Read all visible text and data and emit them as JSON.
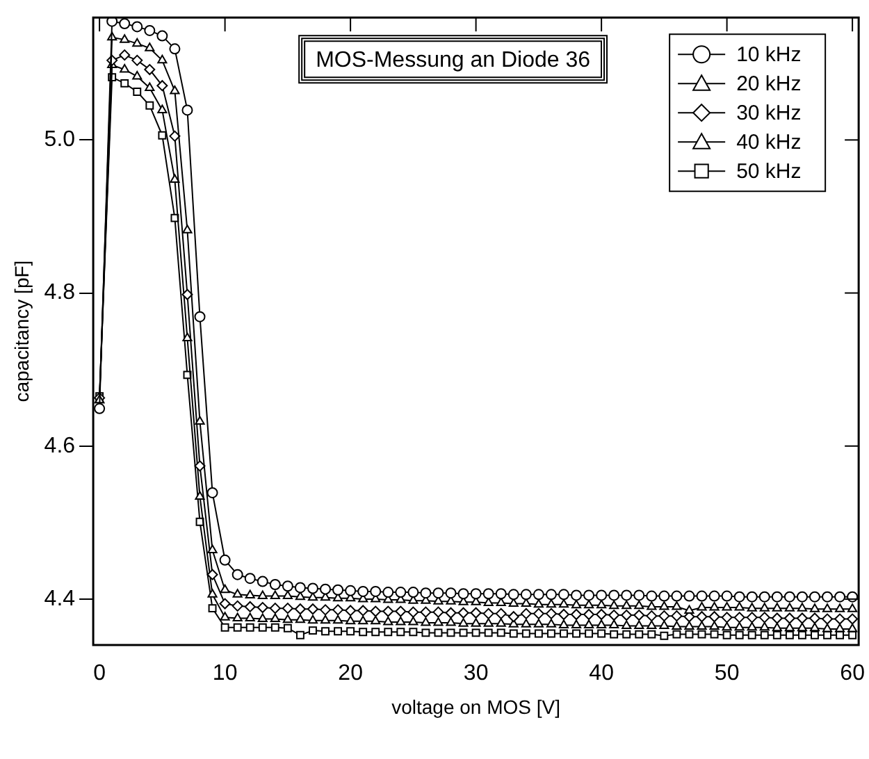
{
  "chart_data": {
    "type": "line",
    "title": "MOS-Messung an Diode 36",
    "xlabel": "voltage on MOS [V]",
    "ylabel": "capacitancy [pF]",
    "x": [
      0,
      1,
      2,
      3,
      4,
      5,
      6,
      7,
      8,
      9,
      10,
      11,
      12,
      13,
      14,
      15,
      16,
      17,
      18,
      19,
      20,
      21,
      22,
      23,
      24,
      25,
      26,
      27,
      28,
      29,
      30,
      31,
      32,
      33,
      34,
      35,
      36,
      37,
      38,
      39,
      40,
      41,
      42,
      43,
      44,
      45,
      46,
      47,
      48,
      49,
      50,
      51,
      52,
      53,
      54,
      55,
      56,
      57,
      58,
      59,
      60
    ],
    "series": [
      {
        "name": "10 kHz",
        "color": "#000000",
        "marker": "circle",
        "values": [
          4.649,
          5.155,
          5.152,
          5.148,
          5.143,
          5.136,
          5.119,
          5.039,
          4.769,
          4.539,
          4.451,
          4.432,
          4.427,
          4.423,
          4.419,
          4.417,
          4.415,
          4.414,
          4.413,
          4.412,
          4.411,
          4.41,
          4.41,
          4.409,
          4.409,
          4.409,
          4.408,
          4.408,
          4.408,
          4.407,
          4.407,
          4.407,
          4.407,
          4.406,
          4.406,
          4.406,
          4.406,
          4.406,
          4.405,
          4.405,
          4.405,
          4.405,
          4.405,
          4.405,
          4.404,
          4.404,
          4.404,
          4.404,
          4.404,
          4.404,
          4.404,
          4.403,
          4.403,
          4.403,
          4.403,
          4.403,
          4.403,
          4.403,
          4.403,
          4.403,
          4.403
        ]
      },
      {
        "name": "20 kHz",
        "color": "#000000",
        "marker": "triangle",
        "values": [
          4.66,
          5.134,
          5.131,
          5.126,
          5.12,
          5.104,
          5.064,
          4.882,
          4.632,
          4.464,
          4.412,
          4.406,
          4.405,
          4.404,
          4.404,
          4.404,
          4.403,
          4.402,
          4.402,
          4.401,
          4.401,
          4.4,
          4.4,
          4.399,
          4.399,
          4.398,
          4.398,
          4.397,
          4.397,
          4.396,
          4.396,
          4.395,
          4.395,
          4.394,
          4.394,
          4.393,
          4.393,
          4.393,
          4.392,
          4.392,
          4.392,
          4.391,
          4.391,
          4.391,
          4.39,
          4.39,
          4.39,
          4.385,
          4.389,
          4.389,
          4.389,
          4.389,
          4.388,
          4.388,
          4.388,
          4.388,
          4.388,
          4.387,
          4.387,
          4.387,
          4.387
        ]
      },
      {
        "name": "30 kHz",
        "color": "#000000",
        "marker": "diamond",
        "values": [
          4.663,
          5.104,
          5.111,
          5.104,
          5.092,
          5.071,
          5.005,
          4.798,
          4.574,
          4.432,
          4.394,
          4.391,
          4.39,
          4.389,
          4.388,
          4.388,
          4.387,
          4.387,
          4.386,
          4.386,
          4.385,
          4.385,
          4.384,
          4.384,
          4.384,
          4.383,
          4.383,
          4.383,
          4.382,
          4.382,
          4.382,
          4.381,
          4.381,
          4.377,
          4.381,
          4.381,
          4.381,
          4.38,
          4.38,
          4.38,
          4.38,
          4.379,
          4.379,
          4.379,
          4.378,
          4.378,
          4.378,
          4.377,
          4.377,
          4.377,
          4.376,
          4.376,
          4.376,
          4.376,
          4.375,
          4.375,
          4.375,
          4.375,
          4.374,
          4.374,
          4.374
        ]
      },
      {
        "name": "40 kHz",
        "color": "#000000",
        "marker": "triangle",
        "values": [
          4.66,
          5.098,
          5.092,
          5.083,
          5.068,
          5.039,
          4.948,
          4.741,
          4.534,
          4.406,
          4.376,
          4.375,
          4.375,
          4.374,
          4.374,
          4.373,
          4.373,
          4.372,
          4.372,
          4.372,
          4.371,
          4.371,
          4.371,
          4.37,
          4.37,
          4.37,
          4.369,
          4.369,
          4.369,
          4.368,
          4.368,
          4.368,
          4.368,
          4.367,
          4.367,
          4.367,
          4.367,
          4.366,
          4.366,
          4.366,
          4.366,
          4.366,
          4.365,
          4.365,
          4.365,
          4.365,
          4.364,
          4.364,
          4.364,
          4.364,
          4.363,
          4.363,
          4.363,
          4.363,
          4.362,
          4.362,
          4.362,
          4.362,
          4.361,
          4.361,
          4.361
        ]
      },
      {
        "name": "50 kHz",
        "color": "#000000",
        "marker": "square",
        "values": [
          4.665,
          5.082,
          5.074,
          5.063,
          5.045,
          5.006,
          4.898,
          4.693,
          4.501,
          4.388,
          4.363,
          4.363,
          4.363,
          4.363,
          4.363,
          4.362,
          4.353,
          4.359,
          4.358,
          4.358,
          4.358,
          4.357,
          4.357,
          4.357,
          4.357,
          4.357,
          4.356,
          4.356,
          4.356,
          4.356,
          4.356,
          4.356,
          4.356,
          4.355,
          4.355,
          4.355,
          4.355,
          4.355,
          4.355,
          4.355,
          4.355,
          4.354,
          4.354,
          4.354,
          4.354,
          4.352,
          4.354,
          4.354,
          4.354,
          4.354,
          4.353,
          4.353,
          4.353,
          4.353,
          4.353,
          4.353,
          4.353,
          4.353,
          4.353,
          4.353,
          4.353
        ]
      }
    ],
    "xlim": [
      -0.5,
      60.5
    ],
    "xticks": [
      0,
      10,
      20,
      30,
      40,
      50,
      60
    ],
    "ylim": [
      4.34,
      5.16
    ],
    "yticks": [
      {
        "value": 4.4,
        "label": "4.4"
      },
      {
        "value": 4.6,
        "label": "4.6"
      },
      {
        "value": 4.8,
        "label": "4.8"
      },
      {
        "value": 5.0,
        "label": "5.0"
      }
    ],
    "grid": false,
    "legend": "top right",
    "line_style": "solid"
  }
}
